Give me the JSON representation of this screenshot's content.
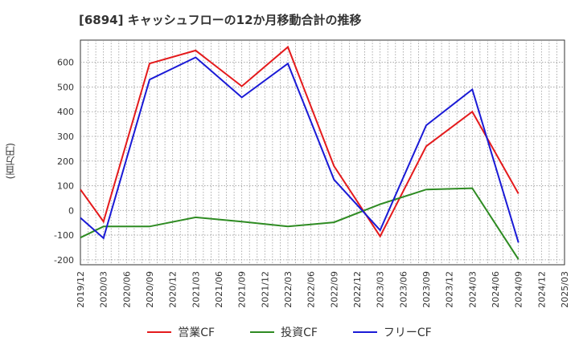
{
  "chart_data": {
    "type": "line",
    "title": "[6894]  キャッシュフローの12か月移動合計の推移",
    "ylabel": "(百万円)",
    "xlabel": "",
    "ylim": [
      -220,
      690
    ],
    "yticks": [
      -200,
      -100,
      0,
      100,
      200,
      300,
      400,
      500,
      600
    ],
    "grid": true,
    "legend_position": "bottom",
    "categories": [
      "2019/12",
      "2020/03",
      "2020/06",
      "2020/09",
      "2020/12",
      "2021/03",
      "2021/06",
      "2021/09",
      "2021/12",
      "2022/03",
      "2022/06",
      "2022/09",
      "2022/12",
      "2023/03",
      "2023/06",
      "2023/09",
      "2023/12",
      "2024/03",
      "2024/06",
      "2024/09",
      "2024/12",
      "2025/03"
    ],
    "series": [
      {
        "name": "営業CF",
        "color": "#e41a1c",
        "values": [
          85,
          -45,
          null,
          595,
          null,
          648,
          null,
          503,
          null,
          662,
          null,
          180,
          null,
          -105,
          null,
          260,
          null,
          400,
          null,
          68,
          null,
          null
        ]
      },
      {
        "name": "投資CF",
        "color": "#2e8b22",
        "values": [
          -110,
          -65,
          null,
          -65,
          null,
          -28,
          null,
          -45,
          null,
          -65,
          null,
          -48,
          null,
          25,
          null,
          85,
          null,
          90,
          null,
          -198,
          null,
          null
        ]
      },
      {
        "name": "フリーCF",
        "color": "#1a1ad6",
        "values": [
          -30,
          -112,
          null,
          530,
          null,
          620,
          null,
          458,
          null,
          595,
          null,
          125,
          null,
          -80,
          null,
          345,
          null,
          490,
          null,
          -130,
          null,
          null
        ]
      }
    ]
  }
}
